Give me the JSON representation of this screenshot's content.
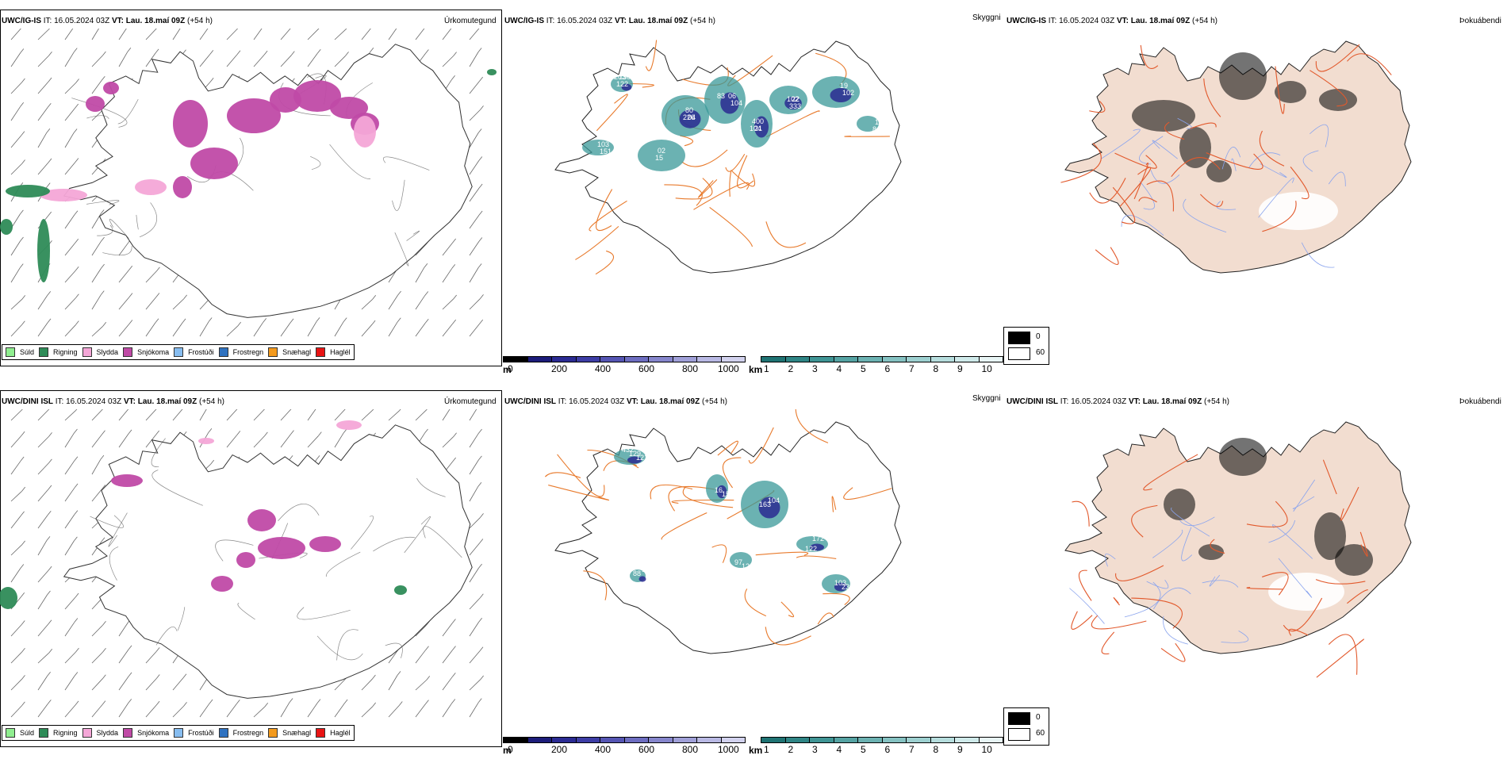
{
  "rows": [
    {
      "model": "UWC/IG-IS",
      "it_label": "IT:",
      "it_value": "16.05.2024 03Z",
      "vt_label": "VT:",
      "vt_value": "Lau. 18.maí 09Z",
      "lead": "(+54 h)",
      "panel1_right": "Úrkomutegund",
      "panel2_right": "Skyggni",
      "panel3_right": "Þokuábendi",
      "visibility_labels": [
        "203",
        "226",
        "06",
        "104",
        "102",
        "19",
        "15",
        "103",
        "84",
        "122",
        "80",
        "104",
        "400",
        "333",
        "102",
        "02",
        "151",
        "108",
        "130",
        "04",
        "83",
        "21",
        "22"
      ]
    },
    {
      "model": "UWC/DINI ISL",
      "it_label": "IT:",
      "it_value": "16.05.2024 03Z",
      "vt_label": "VT:",
      "vt_value": "Lau. 18.maí 09Z",
      "lead": "(+54 h)",
      "panel1_right": "Úrkomutegund",
      "panel2_right": "Skyggni",
      "panel3_right": "Þokuábendi",
      "visibility_labels": [
        "432",
        "16",
        "104",
        "122",
        "103",
        "101",
        "97",
        "129",
        "151",
        "163",
        "172",
        "230",
        "88",
        "123",
        "121"
      ]
    }
  ],
  "precip_legend": [
    {
      "label": "Súld",
      "color": "#90ee90"
    },
    {
      "label": "Rigning",
      "color": "#2e8b57"
    },
    {
      "label": "Slydda",
      "color": "#f4a6d7"
    },
    {
      "label": "Snjókoma",
      "color": "#c04aa6"
    },
    {
      "label": "Frostúði",
      "color": "#87bdf0"
    },
    {
      "label": "Frostregn",
      "color": "#2f72c0"
    },
    {
      "label": "Snæhagl",
      "color": "#f39a1d"
    },
    {
      "label": "Haglél",
      "color": "#e81414"
    }
  ],
  "colorbar_m": {
    "unit": "m",
    "ticks": [
      "0",
      "200",
      "400",
      "600",
      "800",
      "1000"
    ],
    "colors": [
      "#000000",
      "#1c1c7a",
      "#2b2b93",
      "#3d3da5",
      "#5555b3",
      "#6d6dc0",
      "#8686cc",
      "#a0a0d8",
      "#b9b9e4",
      "#d2d2ee"
    ]
  },
  "colorbar_km": {
    "unit": "km",
    "ticks": [
      "1",
      "2",
      "3",
      "4",
      "5",
      "6",
      "7",
      "8",
      "9",
      "10"
    ],
    "colors": [
      "#1f7373",
      "#2f8585",
      "#3f9595",
      "#55a3a3",
      "#6cb2b2",
      "#85c2c2",
      "#9dd0d0",
      "#b6dddd",
      "#cfeaea",
      "#e8f5f5"
    ]
  },
  "fog_legend": [
    {
      "label": "0",
      "color": "#000000"
    },
    {
      "label": "60",
      "color": "#ffffff"
    }
  ],
  "colors": {
    "snow": "#c04aa6",
    "sleet": "#f4a6d7",
    "rain": "#2e8b57",
    "roads": "#e87a2c",
    "land_fog": "#f2ddd0",
    "rivers": "#8aa4ee",
    "vis_teal": "#3a9898",
    "vis_blue": "#2a2a90"
  }
}
